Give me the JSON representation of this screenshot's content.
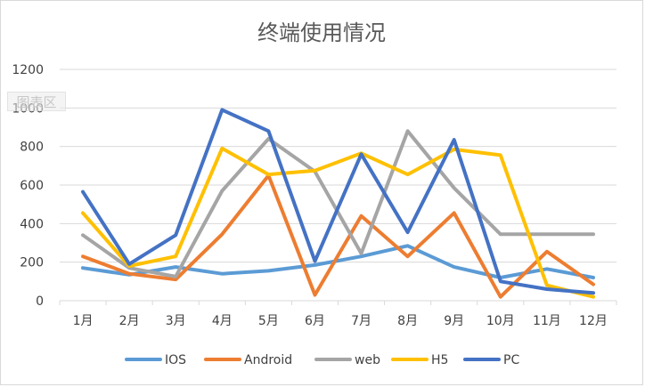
{
  "chart_data": {
    "type": "line",
    "title": "终端使用情况",
    "categories": [
      "1月",
      "2月",
      "3月",
      "4月",
      "5月",
      "6月",
      "7月",
      "8月",
      "9月",
      "10月",
      "11月",
      "12月"
    ],
    "ylim": [
      0,
      1200
    ],
    "yticks": [
      0,
      200,
      400,
      600,
      800,
      1000,
      1200
    ],
    "grid": true,
    "legend_position": "bottom",
    "series": [
      {
        "name": "IOS",
        "color": "#5b9bd5",
        "values": [
          170,
          135,
          175,
          140,
          155,
          185,
          230,
          285,
          175,
          120,
          165,
          120
        ]
      },
      {
        "name": "Android",
        "color": "#ed7d31",
        "values": [
          230,
          140,
          110,
          345,
          650,
          30,
          440,
          230,
          455,
          20,
          255,
          85
        ]
      },
      {
        "name": "web",
        "color": "#a5a5a5",
        "values": [
          340,
          170,
          125,
          570,
          840,
          670,
          245,
          880,
          585,
          345,
          345,
          345
        ]
      },
      {
        "name": "H5",
        "color": "#ffc000",
        "values": [
          455,
          180,
          230,
          790,
          655,
          675,
          765,
          655,
          785,
          755,
          80,
          20
        ]
      },
      {
        "name": "PC",
        "color": "#4472c4",
        "values": [
          565,
          190,
          340,
          990,
          880,
          205,
          760,
          355,
          835,
          100,
          60,
          40
        ]
      }
    ]
  },
  "watermark": "图表区"
}
